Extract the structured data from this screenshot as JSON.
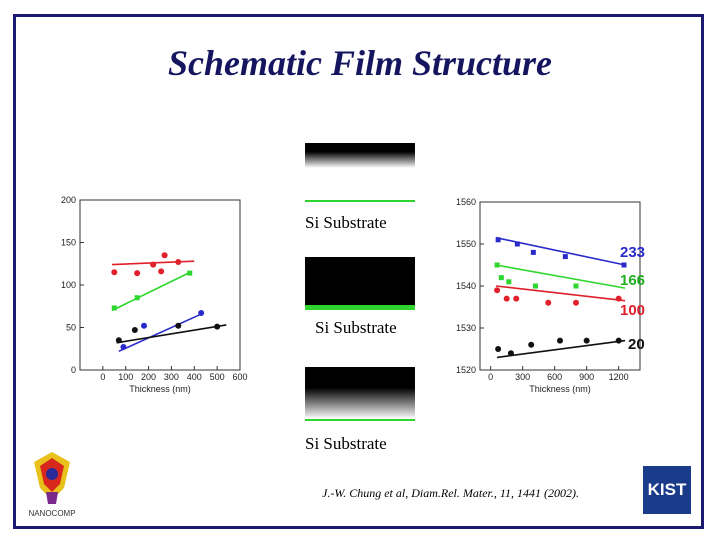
{
  "slide": {
    "title": "Schematic Film Structure",
    "citation": "J.-W. Chung et al, Diam.Rel. Mater., 11, 1441 (2002)."
  },
  "substrate_label": "Si Substrate",
  "colors": {
    "red": "#e0202a",
    "green": "#2ed62e",
    "blue": "#2a2acb",
    "black": "#111111",
    "title": "#151560"
  },
  "logos": {
    "left": "NANOCOMP",
    "right": "KIST"
  },
  "chart_data": [
    {
      "type": "scatter",
      "xlabel": "Thickness (nm)",
      "ylabel": "",
      "xlim": [
        -100,
        600
      ],
      "ylim": [
        0,
        200
      ],
      "xticks": [
        0,
        100,
        200,
        300,
        400,
        500,
        600
      ],
      "yticks": [
        0,
        50,
        100,
        150,
        200
      ],
      "series": [
        {
          "color": "red",
          "x": [
            50,
            150,
            220,
            255,
            270,
            330
          ],
          "y": [
            115,
            114,
            124,
            116,
            135,
            127
          ],
          "fit": [
            [
              40,
              124
            ],
            [
              400,
              128
            ]
          ]
        },
        {
          "color": "green",
          "x": [
            50,
            150,
            380
          ],
          "y": [
            73,
            85,
            114
          ],
          "fit": [
            [
              40,
              70
            ],
            [
              390,
              116
            ]
          ]
        },
        {
          "color": "blue",
          "x": [
            90,
            180,
            430
          ],
          "y": [
            27,
            52,
            67
          ],
          "fit": [
            [
              70,
              22
            ],
            [
              440,
              67
            ]
          ]
        },
        {
          "color": "black",
          "x": [
            70,
            140,
            330,
            500
          ],
          "y": [
            35,
            47,
            52,
            51
          ],
          "fit": [
            [
              60,
              32
            ],
            [
              540,
              53
            ]
          ]
        }
      ]
    },
    {
      "type": "scatter",
      "xlabel": "Thickness (nm)",
      "ylabel": "",
      "xlim": [
        -100,
        1400
      ],
      "ylim": [
        1520,
        1560
      ],
      "xticks": [
        0,
        300,
        600,
        900,
        1200
      ],
      "yticks": [
        1520,
        1530,
        1540,
        1550,
        1560
      ],
      "series": [
        {
          "color": "blue",
          "x": [
            70,
            250,
            400,
            700,
            1250
          ],
          "y": [
            1551,
            1550,
            1548,
            1547,
            1545
          ],
          "fit": [
            [
              50,
              1551.5
            ],
            [
              1260,
              1545
            ]
          ]
        },
        {
          "color": "green",
          "x": [
            60,
            100,
            170,
            420,
            800
          ],
          "y": [
            1545,
            1542,
            1541,
            1540,
            1540
          ],
          "fit": [
            [
              50,
              1545
            ],
            [
              1260,
              1539.5
            ]
          ]
        },
        {
          "color": "red",
          "x": [
            60,
            150,
            240,
            540,
            800,
            1200
          ],
          "y": [
            1539,
            1537,
            1537,
            1536,
            1536,
            1537
          ],
          "fit": [
            [
              50,
              1540
            ],
            [
              1260,
              1536.5
            ]
          ]
        },
        {
          "color": "black",
          "x": [
            70,
            190,
            380,
            650,
            900,
            1200
          ],
          "y": [
            1525,
            1524,
            1526,
            1527,
            1527,
            1527
          ],
          "fit": [
            [
              60,
              1523
            ],
            [
              1260,
              1527
            ]
          ]
        }
      ],
      "annotations": [
        "233",
        "166",
        "100",
        "20"
      ]
    }
  ]
}
